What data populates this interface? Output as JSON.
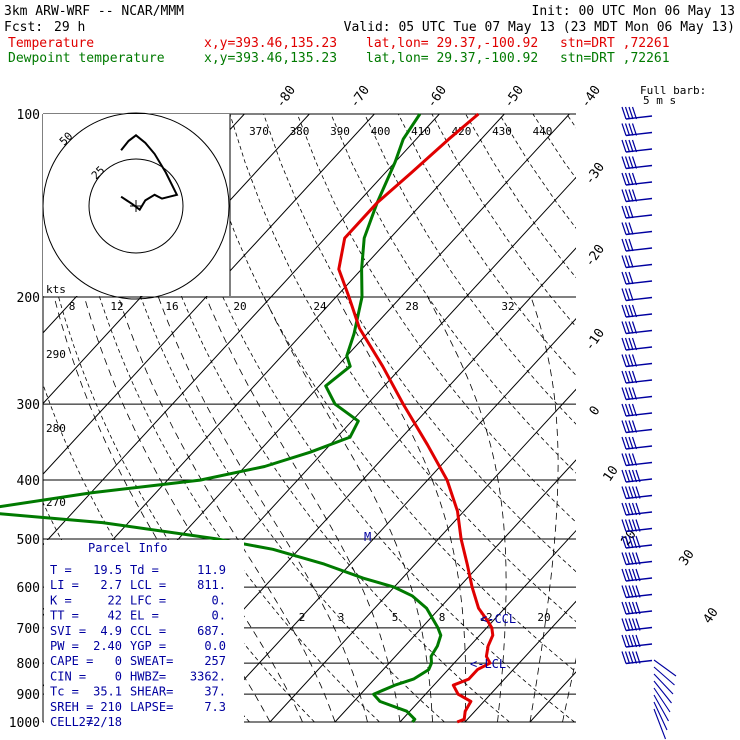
{
  "header": {
    "model": "3km ARW-WRF -- NCAR/MMM",
    "init": "Init: 00 UTC Mon 06 May 13",
    "fcst_label": "Fcst:",
    "fcst_value": "29 h",
    "valid": "Valid: 05 UTC Tue 07 May 13 (23 MDT Mon 06 May 13)",
    "temp_label": "Temperature",
    "dew_label": "Dewpoint temperature",
    "xy": "x,y=393.46,135.23",
    "latlon": "lat,lon= 29.37,-100.92",
    "stn": "stn=DRT ,72261"
  },
  "colors": {
    "temperature": "#e00000",
    "dewpoint": "#007a00",
    "wind": "#0000a0",
    "grid": "#000000"
  },
  "barb_legend": {
    "line1": "Full barb:",
    "line2": "5 m s"
  },
  "hodograph": {
    "ring_labels": [
      "50",
      "25"
    ],
    "kts_label": "kts"
  },
  "parcel_info": {
    "title": "Parcel Info",
    "rows": [
      [
        "T  =",
        "19.5",
        "Td  =",
        "11.9"
      ],
      [
        "LI =",
        "2.7",
        "LCL =",
        "811."
      ],
      [
        "K  =",
        "22",
        "LFC =",
        "0."
      ],
      [
        "TT =",
        "42",
        "EL  =",
        "0."
      ],
      [
        "SVI =",
        "4.9",
        "CCL =",
        "687."
      ],
      [
        "PW =",
        "2.40",
        "YGP =",
        "0.0"
      ],
      [
        "CAPE =",
        "0",
        "SWEAT=",
        "257"
      ],
      [
        "CIN =",
        "0",
        "HWBZ=",
        "3362."
      ],
      [
        "Tc =",
        "35.1",
        "SHEAR=",
        "37."
      ],
      [
        "SREH =",
        "210",
        "LAPSE=",
        "7.3"
      ],
      [
        "CELL =",
        "272/18",
        "",
        ""
      ]
    ]
  },
  "annotations": {
    "lcl": "<-LCL",
    "ccl": "<-CCL",
    "m": "M"
  },
  "chart_data": {
    "type": "line",
    "title": "",
    "diagram": "skew-T log-p",
    "pressure_axis": {
      "label": "",
      "levels": [
        100,
        200,
        300,
        400,
        500,
        600,
        700,
        800,
        900,
        1000
      ],
      "range": [
        100,
        1000
      ],
      "scale": "log"
    },
    "temperature_ticks_top": [
      "-80",
      "-70",
      "-60",
      "-50",
      "-40"
    ],
    "temperature_ticks_right": [
      "-30",
      "-20",
      "-10",
      "0",
      "10",
      "20",
      "30",
      "40"
    ],
    "theta_labels": [
      "370",
      "380",
      "390",
      "400",
      "410",
      "420",
      "430",
      "440"
    ],
    "dry_adiabat_labels": [
      "290",
      "280",
      "270"
    ],
    "mixing_ratio_labels_upper": [
      "8",
      "12",
      "16",
      "20",
      "24",
      "28",
      "32"
    ],
    "mixing_ratio_labels_lower": [
      "2",
      "3",
      "5",
      "8",
      "12",
      "20"
    ],
    "series": [
      {
        "name": "Temperature",
        "pressure": [
          1000,
          990,
          960,
          925,
          900,
          870,
          850,
          820,
          800,
          780,
          750,
          720,
          700,
          680,
          650,
          600,
          550,
          500,
          450,
          400,
          350,
          300,
          260,
          225,
          200,
          180,
          160,
          140,
          125,
          110,
          100
        ],
        "temperature": [
          18.8,
          19.5,
          18.5,
          18.0,
          15.0,
          13.0,
          14.5,
          14.5,
          15.5,
          14.0,
          12.8,
          12.0,
          10.8,
          9.0,
          6.0,
          2.0,
          -2.0,
          -6.5,
          -11.0,
          -17.0,
          -25.0,
          -34.5,
          -43.0,
          -52.0,
          -58.0,
          -63.5,
          -67.0,
          -67.0,
          -66.0,
          -65.0,
          -64.0
        ]
      },
      {
        "name": "Dewpoint temperature",
        "pressure": [
          1000,
          990,
          960,
          925,
          900,
          870,
          850,
          820,
          800,
          780,
          750,
          720,
          700,
          650,
          620,
          600,
          580,
          550,
          520,
          500,
          470,
          450,
          420,
          400,
          380,
          360,
          340,
          320,
          300,
          280,
          260,
          250,
          230,
          200,
          180,
          160,
          140,
          120,
          110,
          100
        ],
        "temperature": [
          11.9,
          11.9,
          9.5,
          4.0,
          2.0,
          4.0,
          6.0,
          7.0,
          6.5,
          5.5,
          5.0,
          4.0,
          2.5,
          -2.0,
          -6.0,
          -10.0,
          -16.0,
          -24.0,
          -34.0,
          -44.0,
          -64.0,
          -86.0,
          -70.0,
          -55.0,
          -47.0,
          -42.0,
          -38.0,
          -39.0,
          -45.0,
          -49.0,
          -48.0,
          -50.0,
          -52.0,
          -56.0,
          -60.0,
          -64.0,
          -67.0,
          -70.0,
          -72.0,
          -73.0
        ]
      }
    ],
    "hodograph_trace_kts": [
      [
        -8,
        5
      ],
      [
        -2,
        1
      ],
      [
        2,
        -2
      ],
      [
        5,
        3
      ],
      [
        10,
        6
      ],
      [
        14,
        4
      ],
      [
        18,
        5
      ],
      [
        22,
        6
      ],
      [
        16,
        18
      ],
      [
        10,
        28
      ],
      [
        5,
        34
      ],
      [
        0,
        38
      ],
      [
        -4,
        35
      ],
      [
        -8,
        30
      ]
    ]
  }
}
